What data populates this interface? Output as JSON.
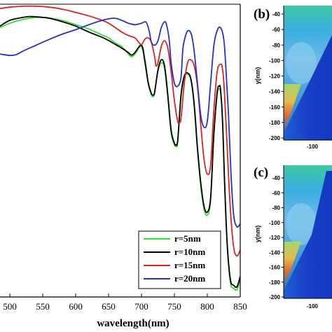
{
  "chart_data": [
    {
      "type": "line",
      "title": "",
      "xlabel": "wavelength(nm)",
      "ylabel": "",
      "xlim": [
        485,
        850
      ],
      "ylim": [
        0,
        1
      ],
      "x_ticks": [
        "500",
        "550",
        "600",
        "650",
        "700",
        "750",
        "800",
        "850"
      ],
      "legend_position": "bottom-right",
      "series": [
        {
          "name": "r=5nm",
          "color": "#33dd33",
          "x": [
            485,
            500,
            520,
            540,
            560,
            580,
            600,
            620,
            640,
            650,
            660,
            670,
            680,
            685,
            690,
            700,
            705,
            710,
            715,
            718,
            720,
            725,
            730,
            735,
            740,
            745,
            750,
            752,
            755,
            760,
            765,
            770,
            775,
            780,
            785,
            790,
            795,
            800,
            805,
            810,
            815,
            818,
            820,
            823,
            826,
            830,
            835,
            840,
            845,
            850
          ],
          "y": [
            0.92,
            0.935,
            0.948,
            0.955,
            0.953,
            0.944,
            0.93,
            0.915,
            0.895,
            0.885,
            0.868,
            0.855,
            0.83,
            0.82,
            0.83,
            0.855,
            0.8,
            0.73,
            0.69,
            0.685,
            0.7,
            0.77,
            0.8,
            0.78,
            0.68,
            0.56,
            0.52,
            0.515,
            0.53,
            0.68,
            0.75,
            0.76,
            0.74,
            0.65,
            0.5,
            0.38,
            0.3,
            0.28,
            0.33,
            0.55,
            0.69,
            0.71,
            0.7,
            0.6,
            0.4,
            0.18,
            0.05,
            0.03,
            0.025,
            0.06
          ]
        },
        {
          "name": "r=10nm",
          "color": "#000000",
          "x": [
            485,
            500,
            520,
            530,
            540,
            560,
            580,
            600,
            620,
            640,
            650,
            660,
            670,
            680,
            685,
            690,
            700,
            705,
            710,
            715,
            718,
            720,
            725,
            730,
            735,
            740,
            745,
            750,
            752,
            755,
            760,
            765,
            770,
            775,
            780,
            785,
            790,
            795,
            800,
            805,
            810,
            815,
            818,
            820,
            823,
            826,
            830,
            835,
            840,
            845,
            850
          ],
          "y": [
            0.925,
            0.945,
            0.955,
            0.958,
            0.957,
            0.952,
            0.94,
            0.925,
            0.905,
            0.887,
            0.876,
            0.863,
            0.85,
            0.835,
            0.826,
            0.835,
            0.86,
            0.81,
            0.735,
            0.695,
            0.69,
            0.7,
            0.775,
            0.81,
            0.79,
            0.69,
            0.57,
            0.525,
            0.52,
            0.535,
            0.69,
            0.755,
            0.765,
            0.745,
            0.66,
            0.51,
            0.39,
            0.31,
            0.29,
            0.34,
            0.56,
            0.7,
            0.72,
            0.71,
            0.61,
            0.41,
            0.19,
            0.06,
            0.04,
            0.035,
            0.07
          ]
        },
        {
          "name": "r=15nm",
          "color": "#dd2222",
          "x": [
            485,
            500,
            520,
            540,
            560,
            580,
            600,
            620,
            640,
            650,
            660,
            670,
            680,
            690,
            695,
            700,
            705,
            710,
            715,
            720,
            722,
            725,
            730,
            735,
            740,
            745,
            750,
            755,
            757,
            760,
            765,
            770,
            775,
            780,
            785,
            790,
            795,
            800,
            805,
            810,
            815,
            820,
            823,
            826,
            830,
            835,
            840,
            845,
            850
          ],
          "y": [
            0.985,
            0.99,
            0.993,
            0.993,
            0.99,
            0.983,
            0.972,
            0.96,
            0.945,
            0.935,
            0.92,
            0.905,
            0.893,
            0.885,
            0.872,
            0.862,
            0.88,
            0.885,
            0.87,
            0.82,
            0.79,
            0.8,
            0.855,
            0.875,
            0.85,
            0.77,
            0.67,
            0.6,
            0.597,
            0.61,
            0.73,
            0.8,
            0.81,
            0.79,
            0.72,
            0.59,
            0.47,
            0.42,
            0.45,
            0.64,
            0.77,
            0.795,
            0.78,
            0.7,
            0.52,
            0.3,
            0.17,
            0.14,
            0.16
          ]
        },
        {
          "name": "r=20nm",
          "color": "#2233cc",
          "x": [
            485,
            500,
            510,
            520,
            540,
            560,
            580,
            600,
            620,
            640,
            650,
            660,
            670,
            680,
            690,
            700,
            705,
            708,
            712,
            715,
            720,
            725,
            730,
            735,
            738,
            742,
            745,
            750,
            755,
            760,
            763,
            768,
            772,
            776,
            780,
            785,
            790,
            795,
            800,
            805,
            810,
            815,
            820,
            825,
            828,
            832,
            836,
            840,
            845,
            850
          ],
          "y": [
            0.83,
            0.825,
            0.828,
            0.84,
            0.86,
            0.88,
            0.898,
            0.913,
            0.93,
            0.945,
            0.95,
            0.952,
            0.945,
            0.935,
            0.93,
            0.935,
            0.94,
            0.935,
            0.905,
            0.87,
            0.86,
            0.875,
            0.92,
            0.94,
            0.93,
            0.88,
            0.8,
            0.73,
            0.72,
            0.75,
            0.85,
            0.9,
            0.91,
            0.895,
            0.84,
            0.73,
            0.62,
            0.58,
            0.6,
            0.73,
            0.86,
            0.91,
            0.92,
            0.88,
            0.79,
            0.63,
            0.42,
            0.28,
            0.24,
            0.25
          ]
        }
      ]
    },
    {
      "type": "heatmap",
      "title": "",
      "ylabel": "y(nm)",
      "panel": "(b)",
      "x_ticks": [
        "-100"
      ],
      "y_ticks": [
        "-40",
        "-60",
        "-80",
        "-100",
        "-120",
        "-140",
        "-160",
        "-180",
        "-200"
      ]
    },
    {
      "type": "heatmap",
      "title": "",
      "ylabel": "y(nm)",
      "panel": "(c)",
      "x_ticks": [
        "-100"
      ],
      "y_ticks": [
        "-40",
        "-60",
        "-80",
        "-100",
        "-120",
        "-140",
        "-160",
        "-180",
        "-200"
      ]
    }
  ]
}
